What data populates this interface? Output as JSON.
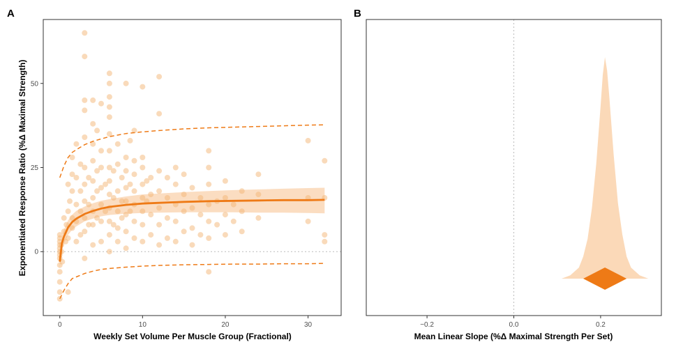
{
  "colors": {
    "accent": "#EE7A16",
    "points": "#F4B676",
    "band": "#FAD2AC",
    "frame": "#333333",
    "zero_line": "#BBBBBB"
  },
  "chart_data": [
    {
      "panel": "A",
      "type": "scatter",
      "title": "",
      "xlabel": "Weekly Set Volume Per Muscle Group (Fractional)",
      "ylabel": "Exponentiated Response Ratio (%Δ Maximal Strength)",
      "xlim": [
        -2,
        34
      ],
      "ylim": [
        -19,
        69
      ],
      "xticks": [
        0,
        10,
        20,
        30
      ],
      "yticks": [
        0,
        25,
        50
      ],
      "grid": false,
      "reference_line": {
        "axis": "y",
        "value": 0,
        "style": "dotted"
      },
      "fit_curve": {
        "x": [
          0,
          0.25,
          0.5,
          1,
          1.5,
          2,
          3,
          4,
          5,
          6,
          8,
          10,
          12,
          15,
          18,
          21,
          24,
          27,
          30,
          32
        ],
        "y": [
          -3,
          2.5,
          4.5,
          7.2,
          8.8,
          9.8,
          11.2,
          12.1,
          12.8,
          13.3,
          13.9,
          14.3,
          14.5,
          14.8,
          15,
          15.1,
          15.2,
          15.3,
          15.3,
          15.4
        ]
      },
      "ci_band": {
        "x": [
          0,
          0.25,
          0.5,
          1,
          1.5,
          2,
          3,
          4,
          5,
          6,
          8,
          10,
          12,
          15,
          18,
          21,
          24,
          27,
          30,
          32
        ],
        "lower": [
          -5,
          0.5,
          2.5,
          5,
          6.5,
          7.5,
          9,
          9.8,
          10.5,
          10.9,
          11.3,
          11.5,
          11.6,
          11.7,
          11.7,
          11.7,
          11.6,
          11.6,
          11.5,
          11.4
        ],
        "upper": [
          -1,
          4.5,
          6.5,
          9.3,
          11,
          12.1,
          13.4,
          14.4,
          15.1,
          15.6,
          16.4,
          17,
          17.3,
          17.7,
          18,
          18.3,
          18.5,
          18.7,
          18.9,
          19
        ]
      },
      "prediction_interval": {
        "x": [
          0,
          0.5,
          1,
          1.5,
          2,
          3,
          4,
          5,
          6,
          8,
          10,
          12,
          15,
          18,
          21,
          24,
          27,
          30,
          32
        ],
        "lower": [
          -14,
          -11.5,
          -9.5,
          -8,
          -7.5,
          -6.5,
          -5.8,
          -5.3,
          -5,
          -4.6,
          -4.3,
          -4.1,
          -3.9,
          -3.8,
          -3.7,
          -3.7,
          -3.6,
          -3.6,
          -3.5
        ],
        "upper": [
          22,
          25.5,
          28,
          29.5,
          30.3,
          31.8,
          32.8,
          33.5,
          34.2,
          35.1,
          35.6,
          36,
          36.5,
          36.8,
          37,
          37.2,
          37.4,
          37.6,
          37.7
        ]
      },
      "points": [
        {
          "x": 0,
          "y": -14
        },
        {
          "x": 0,
          "y": -12
        },
        {
          "x": 0,
          "y": -9
        },
        {
          "x": 0,
          "y": -6
        },
        {
          "x": 0,
          "y": -4
        },
        {
          "x": 0,
          "y": -2
        },
        {
          "x": 0,
          "y": -1
        },
        {
          "x": 0,
          "y": 0
        },
        {
          "x": 0,
          "y": 1
        },
        {
          "x": 0,
          "y": 2
        },
        {
          "x": 0,
          "y": 3
        },
        {
          "x": 0,
          "y": 4
        },
        {
          "x": 0,
          "y": 5
        },
        {
          "x": 0.2,
          "y": 0
        },
        {
          "x": 0.2,
          "y": 2
        },
        {
          "x": 0.3,
          "y": -3
        },
        {
          "x": 0.5,
          "y": 6
        },
        {
          "x": 0.5,
          "y": 10
        },
        {
          "x": 0.7,
          "y": 3
        },
        {
          "x": 0.8,
          "y": 8
        },
        {
          "x": 1,
          "y": -12
        },
        {
          "x": 1,
          "y": 4
        },
        {
          "x": 1,
          "y": 12
        },
        {
          "x": 1,
          "y": 20
        },
        {
          "x": 1.2,
          "y": 15
        },
        {
          "x": 1.5,
          "y": 7
        },
        {
          "x": 1.5,
          "y": 10
        },
        {
          "x": 1.5,
          "y": 18
        },
        {
          "x": 1.5,
          "y": 23
        },
        {
          "x": 1.5,
          "y": 28
        },
        {
          "x": 2,
          "y": 3
        },
        {
          "x": 2,
          "y": 9
        },
        {
          "x": 2,
          "y": 14
        },
        {
          "x": 2,
          "y": 22
        },
        {
          "x": 2,
          "y": 32
        },
        {
          "x": 2.5,
          "y": 5
        },
        {
          "x": 2.5,
          "y": 12
        },
        {
          "x": 2.5,
          "y": 18
        },
        {
          "x": 2.5,
          "y": 26
        },
        {
          "x": 3,
          "y": -2
        },
        {
          "x": 3,
          "y": 6
        },
        {
          "x": 3,
          "y": 10
        },
        {
          "x": 3,
          "y": 15
        },
        {
          "x": 3,
          "y": 20
        },
        {
          "x": 3,
          "y": 25
        },
        {
          "x": 3,
          "y": 34
        },
        {
          "x": 3,
          "y": 42
        },
        {
          "x": 3,
          "y": 45
        },
        {
          "x": 3,
          "y": 58
        },
        {
          "x": 3,
          "y": 65
        },
        {
          "x": 3.5,
          "y": 8
        },
        {
          "x": 3.5,
          "y": 14
        },
        {
          "x": 3.5,
          "y": 22
        },
        {
          "x": 4,
          "y": 2
        },
        {
          "x": 4,
          "y": 8
        },
        {
          "x": 4,
          "y": 12
        },
        {
          "x": 4,
          "y": 16
        },
        {
          "x": 4,
          "y": 21
        },
        {
          "x": 4,
          "y": 27
        },
        {
          "x": 4,
          "y": 32
        },
        {
          "x": 4,
          "y": 38
        },
        {
          "x": 4,
          "y": 45
        },
        {
          "x": 4.5,
          "y": 10
        },
        {
          "x": 4.5,
          "y": 18
        },
        {
          "x": 4.5,
          "y": 24
        },
        {
          "x": 4.5,
          "y": 36
        },
        {
          "x": 5,
          "y": 3
        },
        {
          "x": 5,
          "y": 9
        },
        {
          "x": 5,
          "y": 14
        },
        {
          "x": 5,
          "y": 19
        },
        {
          "x": 5,
          "y": 25
        },
        {
          "x": 5,
          "y": 30
        },
        {
          "x": 5,
          "y": 44
        },
        {
          "x": 5.5,
          "y": 12
        },
        {
          "x": 5.5,
          "y": 20
        },
        {
          "x": 6,
          "y": 0
        },
        {
          "x": 6,
          "y": 5
        },
        {
          "x": 6,
          "y": 9
        },
        {
          "x": 6,
          "y": 13
        },
        {
          "x": 6,
          "y": 17
        },
        {
          "x": 6,
          "y": 21
        },
        {
          "x": 6,
          "y": 25
        },
        {
          "x": 6,
          "y": 30
        },
        {
          "x": 6,
          "y": 35
        },
        {
          "x": 6,
          "y": 40
        },
        {
          "x": 6,
          "y": 43
        },
        {
          "x": 6,
          "y": 46
        },
        {
          "x": 6,
          "y": 50
        },
        {
          "x": 6,
          "y": 53
        },
        {
          "x": 6.5,
          "y": 8
        },
        {
          "x": 6.5,
          "y": 16
        },
        {
          "x": 6.5,
          "y": 24
        },
        {
          "x": 7,
          "y": 3
        },
        {
          "x": 7,
          "y": 7
        },
        {
          "x": 7,
          "y": 12
        },
        {
          "x": 7,
          "y": 18
        },
        {
          "x": 7,
          "y": 26
        },
        {
          "x": 7,
          "y": 32
        },
        {
          "x": 7.5,
          "y": 10
        },
        {
          "x": 7.5,
          "y": 15
        },
        {
          "x": 7.5,
          "y": 22
        },
        {
          "x": 8,
          "y": 1
        },
        {
          "x": 8,
          "y": 6
        },
        {
          "x": 8,
          "y": 11
        },
        {
          "x": 8,
          "y": 15
        },
        {
          "x": 8,
          "y": 19
        },
        {
          "x": 8,
          "y": 24
        },
        {
          "x": 8,
          "y": 28
        },
        {
          "x": 8,
          "y": 50
        },
        {
          "x": 8.5,
          "y": 12
        },
        {
          "x": 8.5,
          "y": 20
        },
        {
          "x": 8.5,
          "y": 33
        },
        {
          "x": 9,
          "y": 4
        },
        {
          "x": 9,
          "y": 9
        },
        {
          "x": 9,
          "y": 14
        },
        {
          "x": 9,
          "y": 18
        },
        {
          "x": 9,
          "y": 23
        },
        {
          "x": 9,
          "y": 27
        },
        {
          "x": 9,
          "y": 36
        },
        {
          "x": 10,
          "y": 3
        },
        {
          "x": 10,
          "y": 8
        },
        {
          "x": 10,
          "y": 12
        },
        {
          "x": 10,
          "y": 16
        },
        {
          "x": 10,
          "y": 20
        },
        {
          "x": 10,
          "y": 25
        },
        {
          "x": 10,
          "y": 28
        },
        {
          "x": 10,
          "y": 49
        },
        {
          "x": 10.5,
          "y": 15
        },
        {
          "x": 10.5,
          "y": 21
        },
        {
          "x": 11,
          "y": 5
        },
        {
          "x": 11,
          "y": 11
        },
        {
          "x": 11,
          "y": 17
        },
        {
          "x": 11,
          "y": 22
        },
        {
          "x": 12,
          "y": 2
        },
        {
          "x": 12,
          "y": 8
        },
        {
          "x": 12,
          "y": 13
        },
        {
          "x": 12,
          "y": 18
        },
        {
          "x": 12,
          "y": 24
        },
        {
          "x": 12,
          "y": 41
        },
        {
          "x": 12,
          "y": 52
        },
        {
          "x": 13,
          "y": 4
        },
        {
          "x": 13,
          "y": 10
        },
        {
          "x": 13,
          "y": 16
        },
        {
          "x": 13,
          "y": 22
        },
        {
          "x": 14,
          "y": 3
        },
        {
          "x": 14,
          "y": 9
        },
        {
          "x": 14,
          "y": 14
        },
        {
          "x": 14,
          "y": 20
        },
        {
          "x": 14,
          "y": 25
        },
        {
          "x": 15,
          "y": 6
        },
        {
          "x": 15,
          "y": 12
        },
        {
          "x": 15,
          "y": 17
        },
        {
          "x": 15,
          "y": 23
        },
        {
          "x": 16,
          "y": 2
        },
        {
          "x": 16,
          "y": 7
        },
        {
          "x": 16,
          "y": 13
        },
        {
          "x": 16,
          "y": 19
        },
        {
          "x": 17,
          "y": 5
        },
        {
          "x": 17,
          "y": 11
        },
        {
          "x": 17,
          "y": 16
        },
        {
          "x": 18,
          "y": -6
        },
        {
          "x": 18,
          "y": 4
        },
        {
          "x": 18,
          "y": 9
        },
        {
          "x": 18,
          "y": 14
        },
        {
          "x": 18,
          "y": 20
        },
        {
          "x": 18,
          "y": 25
        },
        {
          "x": 18,
          "y": 30
        },
        {
          "x": 19,
          "y": 8
        },
        {
          "x": 19,
          "y": 15
        },
        {
          "x": 20,
          "y": 5
        },
        {
          "x": 20,
          "y": 11
        },
        {
          "x": 20,
          "y": 16
        },
        {
          "x": 20,
          "y": 21
        },
        {
          "x": 21,
          "y": 9
        },
        {
          "x": 21,
          "y": 14
        },
        {
          "x": 22,
          "y": 6
        },
        {
          "x": 22,
          "y": 12
        },
        {
          "x": 22,
          "y": 18
        },
        {
          "x": 24,
          "y": 10
        },
        {
          "x": 24,
          "y": 17
        },
        {
          "x": 24,
          "y": 23
        },
        {
          "x": 30,
          "y": 9
        },
        {
          "x": 30,
          "y": 16
        },
        {
          "x": 30,
          "y": 33
        },
        {
          "x": 32,
          "y": 3
        },
        {
          "x": 32,
          "y": 5
        },
        {
          "x": 32,
          "y": 16
        },
        {
          "x": 32,
          "y": 27
        }
      ]
    },
    {
      "panel": "B",
      "type": "area",
      "title": "",
      "xlabel": "Mean Linear Slope (%Δ Maximal Strength Per Set)",
      "ylabel": "",
      "xlim": [
        -0.34,
        0.34
      ],
      "xticks": [
        -0.2,
        0,
        0.2
      ],
      "xtick_labels": [
        "−0.2",
        "0.0",
        "0.2"
      ],
      "grid": false,
      "reference_line": {
        "axis": "x",
        "value": 0,
        "style": "dotted"
      },
      "posterior_density": {
        "x": [
          0.11,
          0.13,
          0.15,
          0.16,
          0.17,
          0.18,
          0.19,
          0.2,
          0.205,
          0.21,
          0.215,
          0.22,
          0.23,
          0.24,
          0.25,
          0.26,
          0.27,
          0.29,
          0.31
        ],
        "density": [
          0,
          0.015,
          0.05,
          0.1,
          0.18,
          0.32,
          0.52,
          0.78,
          0.92,
          1,
          0.94,
          0.82,
          0.56,
          0.34,
          0.2,
          0.1,
          0.05,
          0.015,
          0
        ]
      },
      "interval": {
        "low": 0.16,
        "mode": 0.21,
        "high": 0.26
      }
    }
  ],
  "panel_a": {
    "letter": "A",
    "xlabel": "Weekly Set Volume Per Muscle Group (Fractional)",
    "ylabel": "Exponentiated Response Ratio (%Δ Maximal Strength)",
    "xtick_labels": [
      "0",
      "10",
      "20",
      "30"
    ],
    "ytick_labels": [
      "0",
      "25",
      "50"
    ]
  },
  "panel_b": {
    "letter": "B",
    "xlabel": "Mean Linear Slope (%Δ Maximal Strength Per Set)",
    "xtick_labels": [
      "−0.2",
      "0.0",
      "0.2"
    ]
  }
}
